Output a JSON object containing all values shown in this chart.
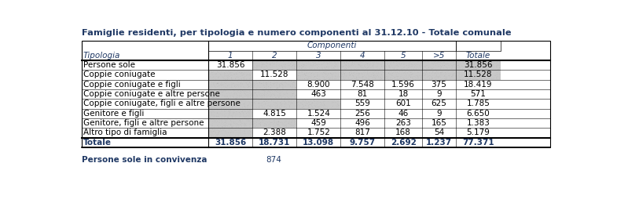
{
  "title": "Famiglie residenti, per tipologia e numero componenti al 31.12.10 - Totale comunale",
  "header_group": "Componenti",
  "col_headers": [
    "Tipologia",
    "1",
    "2",
    "3",
    "4",
    "5",
    ">5",
    "Totale"
  ],
  "rows": [
    [
      "Persone sole",
      "31.856",
      "",
      "",
      "",
      "",
      "",
      "31.856"
    ],
    [
      "Coppie coniugate",
      "",
      "11.528",
      "",
      "",
      "",
      "",
      "11.528"
    ],
    [
      "Coppie coniugate e figli",
      "",
      "",
      "8.900",
      "7.548",
      "1.596",
      "375",
      "18.419"
    ],
    [
      "Coppie coniugate e altre persone",
      "",
      "",
      "463",
      "81",
      "18",
      "9",
      "571"
    ],
    [
      "Coppie coniugate, figli e altre persone",
      "",
      "",
      "",
      "559",
      "601",
      "625",
      "1.785"
    ],
    [
      "Genitore e figli",
      "",
      "4.815",
      "1.524",
      "256",
      "46",
      "9",
      "6.650"
    ],
    [
      "Genitore, figli e altre persone",
      "",
      "",
      "459",
      "496",
      "263",
      "165",
      "1.383"
    ],
    [
      "Altro tipo di famiglia",
      "",
      "2.388",
      "1.752",
      "817",
      "168",
      "54",
      "5.179"
    ]
  ],
  "totale_row": [
    "Totale",
    "31.856",
    "18.731",
    "13.098",
    "9.757",
    "2.692",
    "1.237",
    "77.371"
  ],
  "footer_label": "Persone sole in convivenza",
  "footer_value": "874",
  "title_color": "#1F3864",
  "data_color": "#000000",
  "totale_color": "#1F3864",
  "footer_color": "#1F3864",
  "shaded_color": "#C8C8C8",
  "border_color": "#000000",
  "bg_color": "#FFFFFF",
  "hatched_cols_per_row": [
    [
      1,
      2,
      3,
      4,
      5,
      6
    ],
    [
      0,
      2,
      3,
      4,
      5,
      6
    ],
    [
      0,
      1
    ],
    [
      0,
      1
    ],
    [
      0,
      1,
      2
    ],
    [
      0
    ],
    [
      0,
      1
    ],
    [
      0
    ]
  ]
}
